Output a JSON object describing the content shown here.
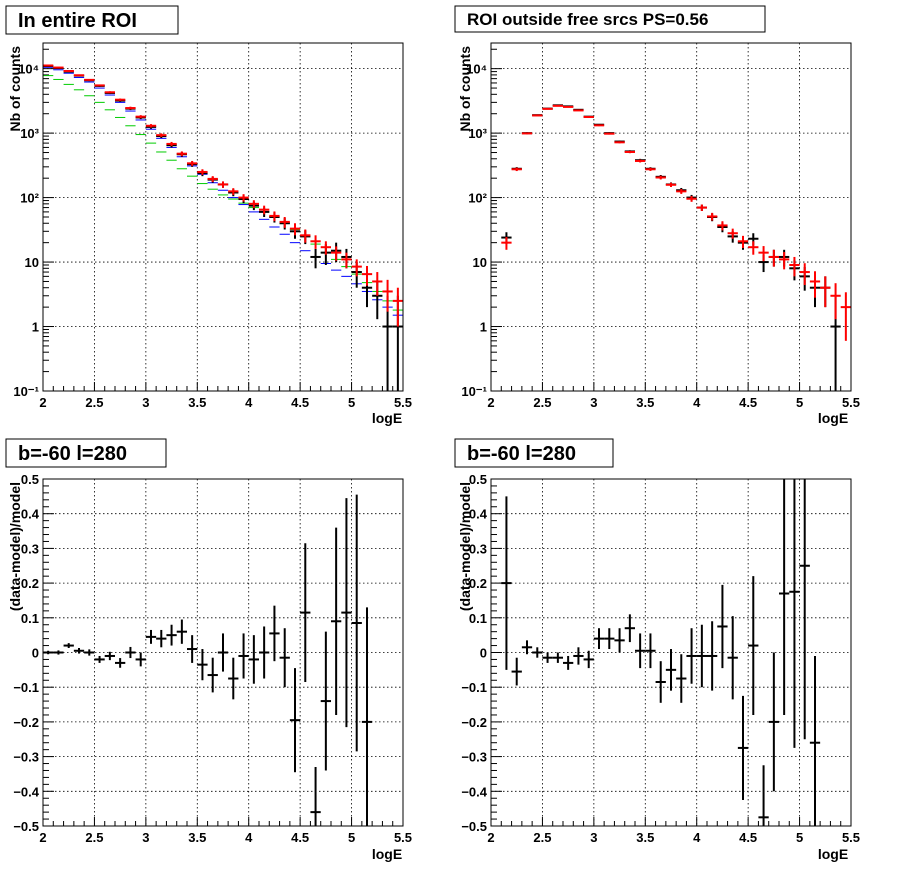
{
  "chart_data": [
    {
      "type": "scatter",
      "title": "In entire ROI",
      "xlabel": "logE",
      "ylabel": "Nb of counts",
      "xlim": [
        2,
        5.5
      ],
      "ylim": [
        0.1,
        25000
      ],
      "yscale": "log",
      "grid": true,
      "x_tick_labels": [
        "2",
        "2.5",
        "3",
        "3.5",
        "4",
        "4.5",
        "5",
        "5.5"
      ],
      "y_tick_labels": [
        "10⁻¹",
        "1",
        "10",
        "10²",
        "10³",
        "10⁴"
      ],
      "series": [
        {
          "color": "#00cc00",
          "x": [
            2.05,
            2.15,
            2.25,
            2.35,
            2.45,
            2.55,
            2.65,
            2.75,
            2.85,
            2.95,
            3.05,
            3.15,
            3.25,
            3.35,
            3.45,
            3.55,
            3.65,
            3.75,
            3.85,
            3.95,
            4.05,
            4.15,
            4.25,
            4.35,
            4.45,
            4.55,
            4.65,
            4.75,
            4.85,
            4.95,
            5.05,
            5.15,
            5.25,
            5.35,
            5.45
          ],
          "y": [
            7800,
            6800,
            5700,
            4700,
            3800,
            3000,
            2300,
            1750,
            1300,
            950,
            700,
            510,
            380,
            280,
            215,
            165,
            135,
            110,
            95,
            82,
            70,
            60,
            50,
            40,
            32,
            25,
            19,
            14,
            11,
            8.5,
            6.5,
            4.8,
            3.5,
            2.5,
            1.8
          ]
        },
        {
          "color": "#0000ff",
          "x": [
            2.05,
            2.15,
            2.25,
            2.35,
            2.45,
            2.55,
            2.65,
            2.75,
            2.85,
            2.95,
            3.05,
            3.15,
            3.25,
            3.35,
            3.45,
            3.55,
            3.65,
            3.75,
            3.85,
            3.95,
            4.05,
            4.15,
            4.25,
            4.35,
            4.45,
            4.55,
            4.65,
            4.75,
            4.85,
            4.95,
            5.05,
            5.15,
            5.25,
            5.35,
            5.45
          ],
          "y": [
            10500,
            9600,
            8500,
            7300,
            6200,
            5000,
            3900,
            3000,
            2200,
            1600,
            1150,
            830,
            600,
            430,
            310,
            230,
            170,
            130,
            100,
            78,
            60,
            46,
            35,
            27,
            20,
            15,
            12,
            9.5,
            7.5,
            6,
            4.6,
            3.5,
            2.6,
            2,
            1.5
          ]
        },
        {
          "color": "#000000",
          "x": [
            2.05,
            2.15,
            2.25,
            2.35,
            2.45,
            2.55,
            2.65,
            2.75,
            2.85,
            2.95,
            3.05,
            3.15,
            3.25,
            3.35,
            3.45,
            3.55,
            3.65,
            3.75,
            3.85,
            3.95,
            4.05,
            4.15,
            4.25,
            4.35,
            4.45,
            4.55,
            4.65,
            4.75,
            4.85,
            4.95,
            5.05,
            5.15,
            5.25,
            5.35,
            5.45
          ],
          "y": [
            11000,
            10200,
            9000,
            7800,
            6600,
            5400,
            4200,
            3200,
            2400,
            1750,
            1250,
            900,
            650,
            470,
            330,
            240,
            190,
            160,
            120,
            95,
            75,
            60,
            50,
            40,
            30,
            25,
            12,
            14,
            15,
            12,
            7,
            4,
            3,
            1,
            1
          ],
          "yerr_lo": [
            250,
            240,
            230,
            220,
            200,
            180,
            160,
            140,
            120,
            100,
            80,
            60,
            50,
            40,
            30,
            25,
            20,
            18,
            15,
            13,
            11,
            10,
            9,
            8,
            7,
            6,
            4,
            5,
            5,
            4,
            3,
            2,
            1.7,
            0.9,
            0.9
          ],
          "yerr_hi": [
            250,
            240,
            230,
            220,
            200,
            180,
            160,
            140,
            120,
            100,
            80,
            60,
            50,
            40,
            30,
            25,
            20,
            18,
            15,
            13,
            11,
            10,
            9,
            8,
            7,
            6,
            4,
            5,
            5,
            4,
            3,
            2.5,
            2,
            2,
            2
          ]
        },
        {
          "color": "#ff0000",
          "x": [
            2.05,
            2.15,
            2.25,
            2.35,
            2.45,
            2.55,
            2.65,
            2.75,
            2.85,
            2.95,
            3.05,
            3.15,
            3.25,
            3.35,
            3.45,
            3.55,
            3.65,
            3.75,
            3.85,
            3.95,
            4.05,
            4.15,
            4.25,
            4.35,
            4.45,
            4.55,
            4.65,
            4.75,
            4.85,
            4.95,
            5.05,
            5.15,
            5.25,
            5.35,
            5.45
          ],
          "y": [
            11200,
            10400,
            9200,
            7900,
            6700,
            5500,
            4300,
            3300,
            2450,
            1800,
            1300,
            930,
            680,
            480,
            340,
            250,
            195,
            160,
            125,
            100,
            80,
            65,
            52,
            42,
            33,
            26,
            21,
            17,
            14,
            11,
            8.5,
            6.5,
            5,
            3.5,
            2.5
          ],
          "yerr_lo": [
            250,
            240,
            230,
            220,
            200,
            180,
            160,
            140,
            120,
            100,
            80,
            60,
            50,
            40,
            30,
            25,
            20,
            18,
            15,
            13,
            11,
            10,
            9,
            8,
            7,
            6,
            5,
            4,
            3.5,
            3,
            2.5,
            2.2,
            2,
            1.8,
            1.5
          ],
          "yerr_hi": [
            250,
            240,
            230,
            220,
            200,
            180,
            160,
            140,
            120,
            100,
            80,
            60,
            50,
            40,
            30,
            25,
            20,
            18,
            15,
            13,
            11,
            10,
            9,
            8,
            7,
            6,
            5,
            4,
            3.5,
            3,
            2.5,
            2.2,
            2,
            1.8,
            1.5
          ]
        }
      ]
    },
    {
      "type": "scatter",
      "title": "ROI outside free srcs PS=0.56",
      "xlabel": "logE",
      "ylabel": "Nb of counts",
      "xlim": [
        2,
        5.5
      ],
      "ylim": [
        0.1,
        25000
      ],
      "yscale": "log",
      "grid": true,
      "x_tick_labels": [
        "2",
        "2.5",
        "3",
        "3.5",
        "4",
        "4.5",
        "5",
        "5.5"
      ],
      "y_tick_labels": [
        "10⁻¹",
        "1",
        "10",
        "10²",
        "10³",
        "10⁴"
      ],
      "series": [
        {
          "color": "#000000",
          "x": [
            2.15,
            2.25,
            2.35,
            2.45,
            2.55,
            2.65,
            2.75,
            2.85,
            2.95,
            3.05,
            3.15,
            3.25,
            3.35,
            3.45,
            3.55,
            3.65,
            3.75,
            3.85,
            3.95,
            4.05,
            4.15,
            4.25,
            4.35,
            4.45,
            4.55,
            4.65,
            4.75,
            4.85,
            4.95,
            5.05,
            5.15,
            5.25,
            5.35
          ],
          "y": [
            24,
            280,
            1000,
            1900,
            2400,
            2700,
            2600,
            2300,
            1800,
            1350,
            1000,
            740,
            520,
            380,
            280,
            210,
            160,
            130,
            100,
            70,
            50,
            35,
            25,
            20,
            23,
            10,
            12,
            12,
            8,
            6,
            4,
            4,
            1
          ],
          "yerr_lo": [
            5,
            17,
            30,
            40,
            45,
            50,
            50,
            45,
            40,
            35,
            30,
            25,
            22,
            19,
            16,
            14,
            12,
            11,
            10,
            8,
            7,
            6,
            5,
            4.5,
            5,
            3,
            3.5,
            3.5,
            2.8,
            2.4,
            2,
            2,
            0.9
          ],
          "yerr_hi": [
            5,
            17,
            30,
            40,
            45,
            50,
            50,
            45,
            40,
            35,
            30,
            25,
            22,
            19,
            16,
            14,
            12,
            11,
            10,
            8,
            7,
            6,
            5,
            4.5,
            5,
            3,
            3.5,
            3.5,
            2.8,
            2.4,
            2,
            2,
            2
          ]
        },
        {
          "color": "#ff0000",
          "x": [
            2.15,
            2.25,
            2.35,
            2.45,
            2.55,
            2.65,
            2.75,
            2.85,
            2.95,
            3.05,
            3.15,
            3.25,
            3.35,
            3.45,
            3.55,
            3.65,
            3.75,
            3.85,
            3.95,
            4.05,
            4.15,
            4.25,
            4.35,
            4.45,
            4.55,
            4.65,
            4.75,
            4.85,
            4.95,
            5.05,
            5.15,
            5.25,
            5.35,
            5.45
          ],
          "y": [
            20,
            275,
            990,
            1880,
            2380,
            2650,
            2550,
            2250,
            1780,
            1320,
            980,
            720,
            510,
            370,
            275,
            205,
            158,
            125,
            96,
            70,
            51,
            37,
            28,
            21,
            17,
            14,
            12,
            11,
            9,
            7,
            5,
            4,
            3,
            2
          ],
          "yerr_lo": [
            4.5,
            17,
            30,
            40,
            45,
            50,
            50,
            45,
            40,
            35,
            30,
            25,
            22,
            19,
            16,
            14,
            12,
            11,
            10,
            8,
            7,
            6,
            5,
            4.5,
            4,
            3.7,
            3.5,
            3.3,
            3,
            2.6,
            2.2,
            2,
            1.7,
            1.4
          ],
          "yerr_hi": [
            4.5,
            17,
            30,
            40,
            45,
            50,
            50,
            45,
            40,
            35,
            30,
            25,
            22,
            19,
            16,
            14,
            12,
            11,
            10,
            8,
            7,
            6,
            5,
            4.5,
            4,
            3.7,
            3.5,
            3.3,
            3,
            2.6,
            2.2,
            2,
            1.7,
            1.4
          ]
        }
      ]
    },
    {
      "type": "scatter",
      "title": "b=-60 l=280",
      "xlabel": "logE",
      "ylabel": "(data-model)/model",
      "xlim": [
        2,
        5.5
      ],
      "ylim": [
        -0.5,
        0.5
      ],
      "yscale": "linear",
      "grid": true,
      "x_tick_labels": [
        "2",
        "2.5",
        "3",
        "3.5",
        "4",
        "4.5",
        "5",
        "5.5"
      ],
      "y_tick_labels": [
        "−0.5",
        "−0.4",
        "−0.3",
        "−0.2",
        "−0.1",
        "0",
        "0.1",
        "0.2",
        "0.3",
        "0.4",
        "0.5"
      ],
      "series": [
        {
          "color": "#000000",
          "x": [
            2.05,
            2.15,
            2.25,
            2.35,
            2.45,
            2.55,
            2.65,
            2.75,
            2.85,
            2.95,
            3.05,
            3.15,
            3.25,
            3.35,
            3.45,
            3.55,
            3.65,
            3.75,
            3.85,
            3.95,
            4.05,
            4.15,
            4.25,
            4.35,
            4.45,
            4.55,
            4.65,
            4.75,
            4.85,
            4.95,
            5.05,
            5.15
          ],
          "y": [
            0,
            0,
            0.02,
            0.005,
            0,
            -0.02,
            -0.01,
            -0.03,
            0,
            -0.02,
            0.045,
            0.04,
            0.05,
            0.06,
            0.01,
            -0.035,
            -0.065,
            0,
            -0.075,
            -0.01,
            -0.02,
            0,
            0.055,
            -0.015,
            -0.195,
            0.115,
            -0.46,
            -0.14,
            0.09,
            0.115,
            0.085,
            -0.2
          ],
          "yerr": [
            0.005,
            0.006,
            0.007,
            0.008,
            0.009,
            0.01,
            0.012,
            0.014,
            0.016,
            0.02,
            0.02,
            0.025,
            0.03,
            0.035,
            0.04,
            0.045,
            0.05,
            0.055,
            0.06,
            0.065,
            0.07,
            0.075,
            0.08,
            0.085,
            0.15,
            0.2,
            0.13,
            0.2,
            0.27,
            0.33,
            0.37,
            0.33
          ]
        }
      ]
    },
    {
      "type": "scatter",
      "title": "b=-60 l=280",
      "xlabel": "logE",
      "ylabel": "(data-model)/model",
      "xlim": [
        2,
        5.5
      ],
      "ylim": [
        -0.5,
        0.5
      ],
      "yscale": "linear",
      "grid": true,
      "x_tick_labels": [
        "2",
        "2.5",
        "3",
        "3.5",
        "4",
        "4.5",
        "5",
        "5.5"
      ],
      "y_tick_labels": [
        "−0.5",
        "−0.4",
        "−0.3",
        "−0.2",
        "−0.1",
        "0",
        "0.1",
        "0.2",
        "0.3",
        "0.4",
        "0.5"
      ],
      "series": [
        {
          "color": "#000000",
          "x": [
            2.15,
            2.25,
            2.35,
            2.45,
            2.55,
            2.65,
            2.75,
            2.85,
            2.95,
            3.05,
            3.15,
            3.25,
            3.35,
            3.45,
            3.55,
            3.65,
            3.75,
            3.85,
            3.95,
            4.05,
            4.15,
            4.25,
            4.35,
            4.45,
            4.55,
            4.65,
            4.75,
            4.85,
            4.95,
            5.05,
            5.15
          ],
          "y": [
            0.2,
            -0.055,
            0.015,
            0,
            -0.015,
            -0.015,
            -0.03,
            -0.01,
            -0.02,
            0.04,
            0.04,
            0.035,
            0.07,
            0.005,
            0.005,
            -0.085,
            -0.05,
            -0.075,
            -0.01,
            -0.01,
            -0.01,
            0.075,
            -0.015,
            -0.275,
            0.02,
            -0.475,
            -0.2,
            0.17,
            0.175,
            0.25,
            -0.26
          ],
          "yerr": [
            0.25,
            0.04,
            0.02,
            0.015,
            0.015,
            0.015,
            0.02,
            0.025,
            0.025,
            0.03,
            0.03,
            0.035,
            0.04,
            0.05,
            0.05,
            0.06,
            0.06,
            0.07,
            0.08,
            0.09,
            0.1,
            0.12,
            0.12,
            0.15,
            0.2,
            0.15,
            0.2,
            0.35,
            0.45,
            0.5,
            0.25
          ]
        }
      ]
    }
  ]
}
